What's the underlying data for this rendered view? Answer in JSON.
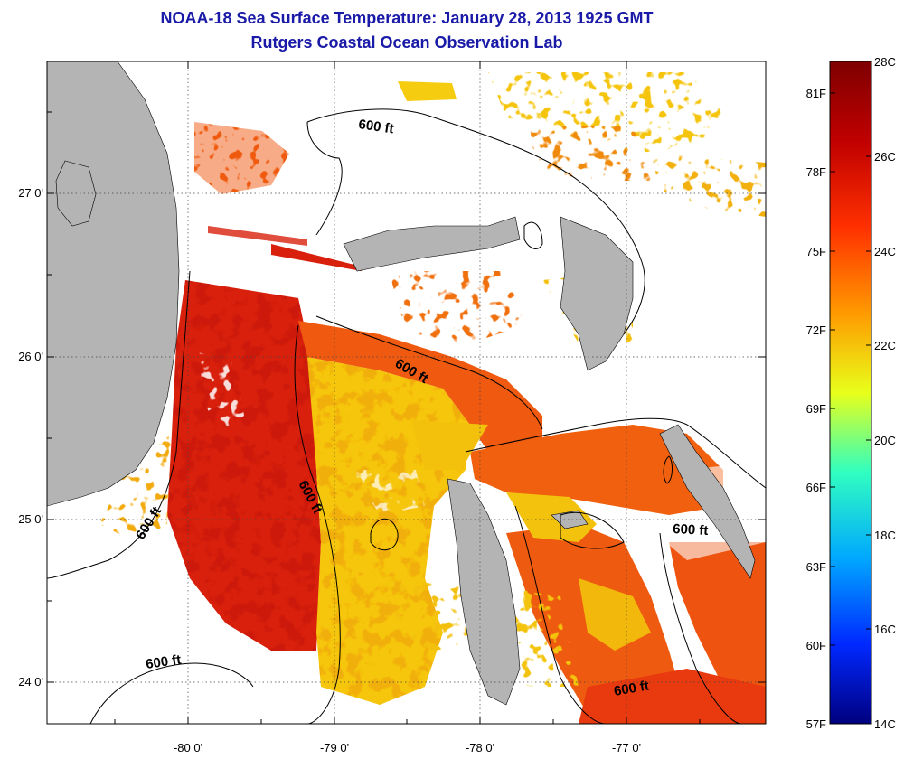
{
  "title": {
    "line1": "NOAA-18 Sea Surface Temperature:  January 28, 2013 1925 GMT",
    "line2": "Rutgers Coastal Ocean Observation Lab"
  },
  "axes": {
    "lon_labels": [
      "-80 0'",
      "-79 0'",
      "-78 0'",
      "-77 0'"
    ],
    "lat_labels": [
      "27 0'",
      "26 0'",
      "25 0'",
      "24 0'"
    ]
  },
  "contour_labels": [
    "600 ft",
    "600 ft",
    "600 ft",
    "600 ft",
    "600 ft",
    "600 ft"
  ],
  "colorbar": {
    "celsius": [
      "28C",
      "26C",
      "24C",
      "22C",
      "20C",
      "18C",
      "16C",
      "14C"
    ],
    "fahrenheit": [
      "81F",
      "78F",
      "75F",
      "72F",
      "69F",
      "66F",
      "63F",
      "60F",
      "57F"
    ]
  },
  "colors": {
    "land": "#b4b4b4",
    "warm": "#e0240c",
    "mid": "#f26a12",
    "cool": "#f2d40a",
    "title": "#1a1aa8"
  }
}
